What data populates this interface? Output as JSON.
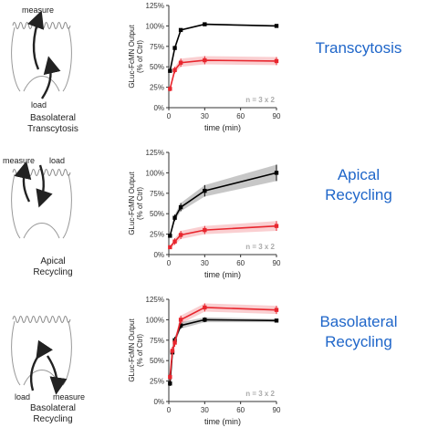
{
  "colors": {
    "control": "#000000",
    "test": "#e8262e",
    "title": "#1f66c9"
  },
  "panels": [
    {
      "title_lines": [
        "Transcytosis"
      ],
      "caption_lines": [
        "Basolateral",
        "Transcytosis"
      ],
      "measure_label": "measure",
      "load_label": "load",
      "diagram": "transcytosis"
    },
    {
      "title_lines": [
        "Apical",
        "Recycling"
      ],
      "caption_lines": [
        "Apical",
        "Recycling"
      ],
      "measure_label": "measure",
      "load_label": "load",
      "diagram": "apical"
    },
    {
      "title_lines": [
        "Basolateral",
        "Recycling"
      ],
      "caption_lines": [
        "Basolateral",
        "Recycling"
      ],
      "measure_label": "measure",
      "load_label": "load",
      "diagram": "basolateral"
    }
  ],
  "chart_data": [
    {
      "type": "line",
      "xlabel": "time (min)",
      "ylabel_lines": [
        "GLuc-FcMN Output",
        "(% of Ctrl)"
      ],
      "xlim": [
        0,
        90
      ],
      "xticks": [
        0,
        30,
        60,
        90
      ],
      "ylim": [
        0,
        125
      ],
      "yticks": [
        "0%",
        "25%",
        "50%",
        "75%",
        "100%",
        "125%"
      ],
      "annotation": "n = 3 x 2",
      "series": [
        {
          "x": [
            1,
            5,
            10,
            30,
            90
          ],
          "y": [
            45,
            73,
            95,
            102,
            100
          ],
          "err": [
            1,
            1,
            1,
            1,
            1
          ],
          "color_key": "control"
        },
        {
          "x": [
            1,
            5,
            10,
            30,
            90
          ],
          "y": [
            23,
            46,
            55,
            58,
            57
          ],
          "err": [
            3,
            4,
            5,
            5,
            5
          ],
          "color_key": "test"
        }
      ]
    },
    {
      "type": "line",
      "xlabel": "time (min)",
      "ylabel_lines": [
        "GLuc-FcMN Output",
        "(% of Ctrl)"
      ],
      "xlim": [
        0,
        90
      ],
      "xticks": [
        0,
        30,
        60,
        90
      ],
      "ylim": [
        0,
        125
      ],
      "yticks": [
        "0%",
        "25%",
        "50%",
        "75%",
        "100%",
        "125%"
      ],
      "annotation": "n = 3 x 2",
      "series": [
        {
          "x": [
            1,
            5,
            10,
            30,
            90
          ],
          "y": [
            23,
            45,
            58,
            78,
            100
          ],
          "err": [
            2,
            4,
            5,
            7,
            10
          ],
          "color_key": "control"
        },
        {
          "x": [
            1,
            5,
            10,
            30,
            90
          ],
          "y": [
            9,
            16,
            24,
            30,
            35
          ],
          "err": [
            2,
            4,
            5,
            5,
            6
          ],
          "color_key": "test"
        }
      ]
    },
    {
      "type": "line",
      "xlabel": "time (min)",
      "ylabel_lines": [
        "GLuc-FcMN Output",
        "(% of Ctrl)"
      ],
      "xlim": [
        0,
        90
      ],
      "xticks": [
        0,
        30,
        60,
        90
      ],
      "ylim": [
        0,
        125
      ],
      "yticks": [
        "0%",
        "25%",
        "50%",
        "75%",
        "100%",
        "125%"
      ],
      "annotation": "n = 3 x 2",
      "series": [
        {
          "x": [
            1,
            3,
            5,
            10,
            30,
            90
          ],
          "y": [
            22,
            60,
            75,
            93,
            100,
            99
          ],
          "err": [
            3,
            4,
            4,
            4,
            3,
            2
          ],
          "color_key": "control"
        },
        {
          "x": [
            1,
            3,
            5,
            10,
            30,
            90
          ],
          "y": [
            30,
            62,
            72,
            100,
            115,
            112
          ],
          "err": [
            4,
            5,
            5,
            5,
            5,
            5
          ],
          "color_key": "test"
        }
      ]
    }
  ]
}
